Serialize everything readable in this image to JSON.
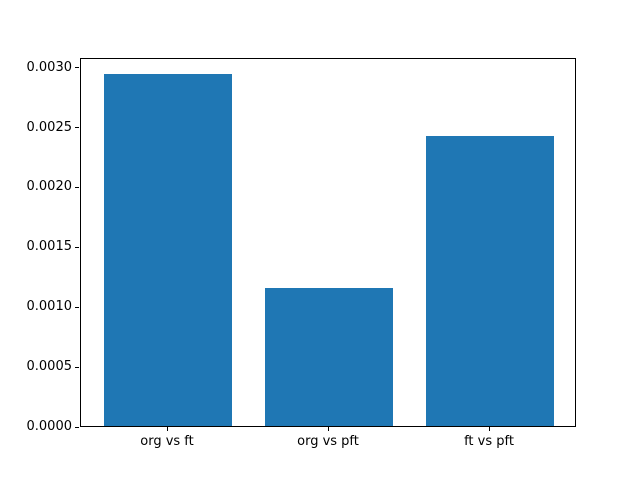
{
  "chart_data": {
    "type": "bar",
    "title": "",
    "xlabel": "",
    "ylabel": "",
    "categories": [
      "org vs ft",
      "org vs pft",
      "ft vs pft"
    ],
    "values": [
      0.00294,
      0.00115,
      0.00242
    ],
    "bar_color": "#1f77b4",
    "bar_width": 0.8,
    "xlim": [
      -0.54,
      2.54
    ],
    "ylim": [
      0,
      0.00308
    ],
    "yticks": [
      0.0,
      0.0005,
      0.001,
      0.0015,
      0.002,
      0.0025,
      0.003
    ],
    "ytick_labels": [
      "0.0000",
      "0.0005",
      "0.0010",
      "0.0015",
      "0.0020",
      "0.0025",
      "0.0030"
    ],
    "grid": false,
    "legend": null,
    "background_color": "#ffffff",
    "spine_color": "#000000"
  }
}
